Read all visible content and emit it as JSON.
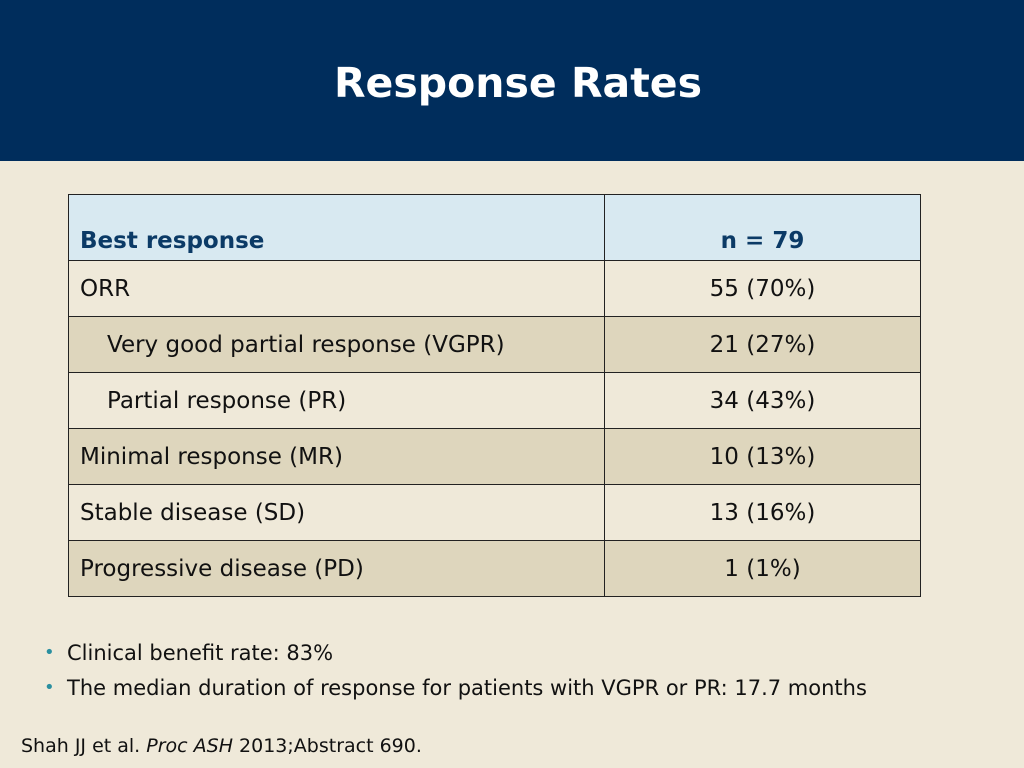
{
  "header": {
    "title": "Response Rates",
    "background_color": "#002d5c"
  },
  "table": {
    "header": {
      "col1": "Best response",
      "col2": "n = 79"
    },
    "rows": [
      {
        "label": "ORR",
        "value": "55 (70%)",
        "indent": false
      },
      {
        "label": "Very good partial response (VGPR)",
        "value": "21 (27%)",
        "indent": true
      },
      {
        "label": "Partial response (PR)",
        "value": "34 (43%)",
        "indent": true
      },
      {
        "label": "Minimal response (MR)",
        "value": "10 (13%)",
        "indent": false
      },
      {
        "label": "Stable disease (SD)",
        "value": "13 (16%)",
        "indent": false
      },
      {
        "label": "Progressive disease (PD)",
        "value": "1 (1%)",
        "indent": false
      }
    ]
  },
  "bullets": [
    "Clinical benefit rate: 83%",
    "The median duration of response for patients with VGPR or PR: 17.7 months"
  ],
  "citation": {
    "authors": "Shah JJ et al.",
    "journal": "Proc ASH",
    "details": "2013;Abstract 690."
  },
  "colors": {
    "background": "#efe9d9",
    "header_row": "#d8e9f1",
    "shaded_row": "#ded6bd",
    "bullet": "#2a8fa0"
  }
}
